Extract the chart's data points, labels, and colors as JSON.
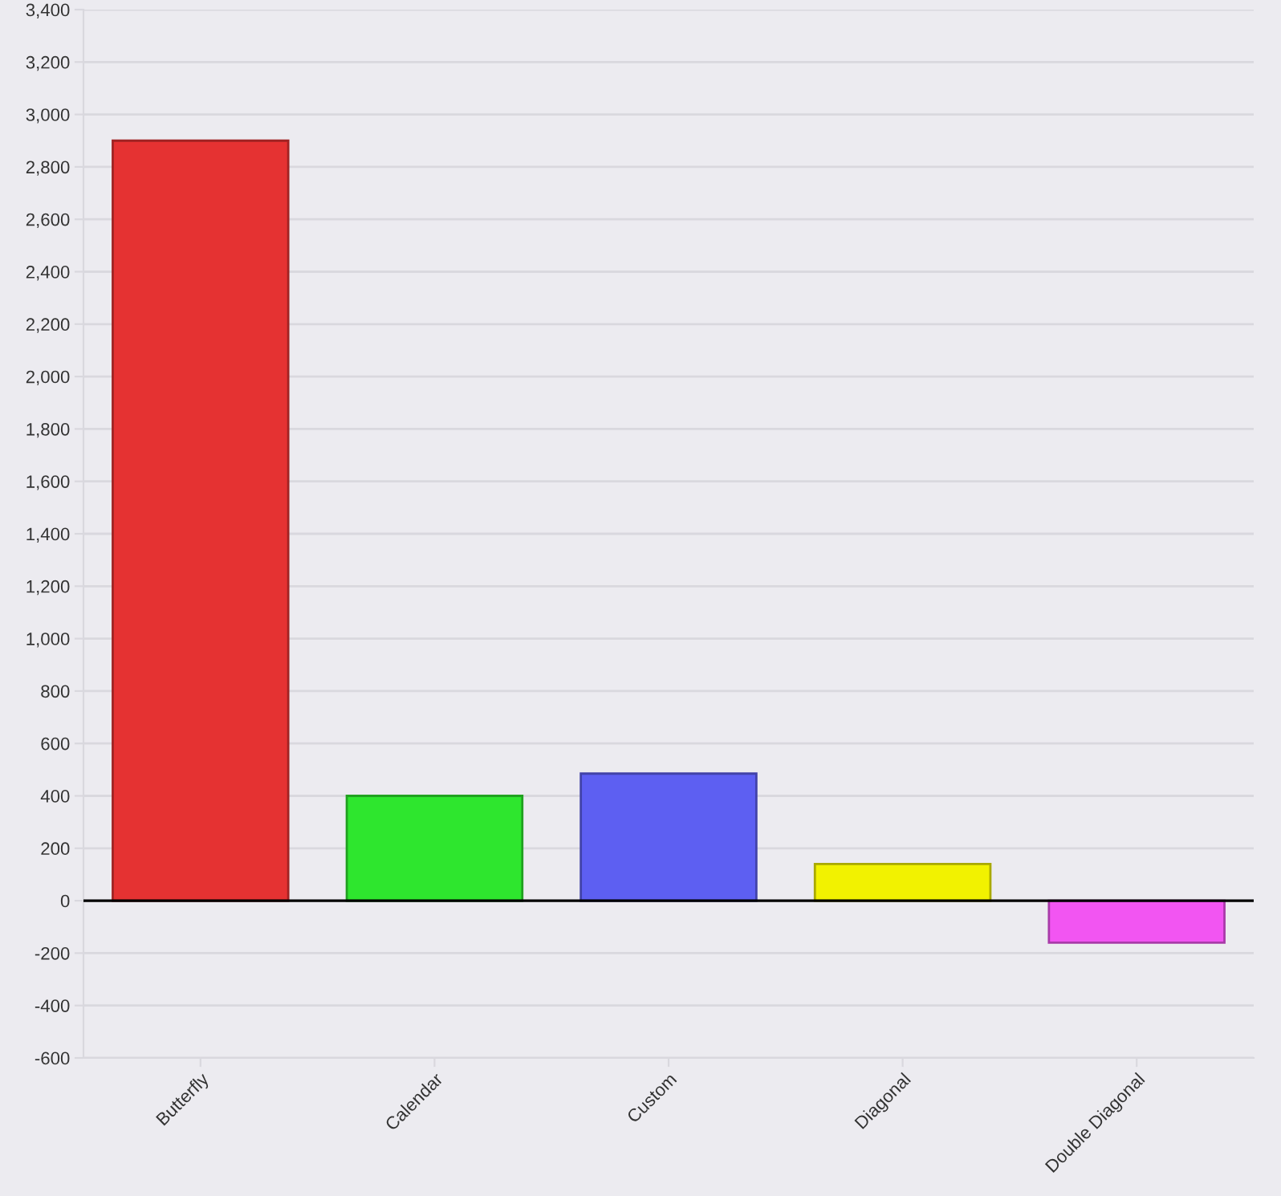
{
  "chart_data": {
    "type": "bar",
    "categories": [
      "Butterfly",
      "Calendar",
      "Custom",
      "Diagonal",
      "Double Diagonal"
    ],
    "values": [
      2900,
      400,
      485,
      140,
      -160
    ],
    "colors": [
      "#e53232",
      "#2ee62e",
      "#5d5ff2",
      "#f2f200",
      "#f255f2"
    ],
    "ylim": [
      -600,
      3400
    ],
    "yticks": [
      {
        "value": -600,
        "label": "-600"
      },
      {
        "value": -400,
        "label": "-400"
      },
      {
        "value": -200,
        "label": "-200"
      },
      0,
      200,
      400,
      600,
      800,
      {
        "value": 1000,
        "label": "1,000"
      },
      {
        "value": 1200,
        "label": "1,200"
      },
      {
        "value": 1400,
        "label": "1,400"
      },
      {
        "value": 1600,
        "label": "1,600"
      },
      {
        "value": 1800,
        "label": "1,800"
      },
      {
        "value": 2000,
        "label": "2,000"
      },
      {
        "value": 2200,
        "label": "2,200"
      },
      {
        "value": 2400,
        "label": "2,400"
      },
      {
        "value": 2600,
        "label": "2,600"
      },
      {
        "value": 2800,
        "label": "2,800"
      },
      {
        "value": 3000,
        "label": "3,000"
      },
      {
        "value": 3200,
        "label": "3,200"
      },
      {
        "value": 3400,
        "label": "3,400"
      }
    ],
    "grid": "y",
    "legend": false
  }
}
